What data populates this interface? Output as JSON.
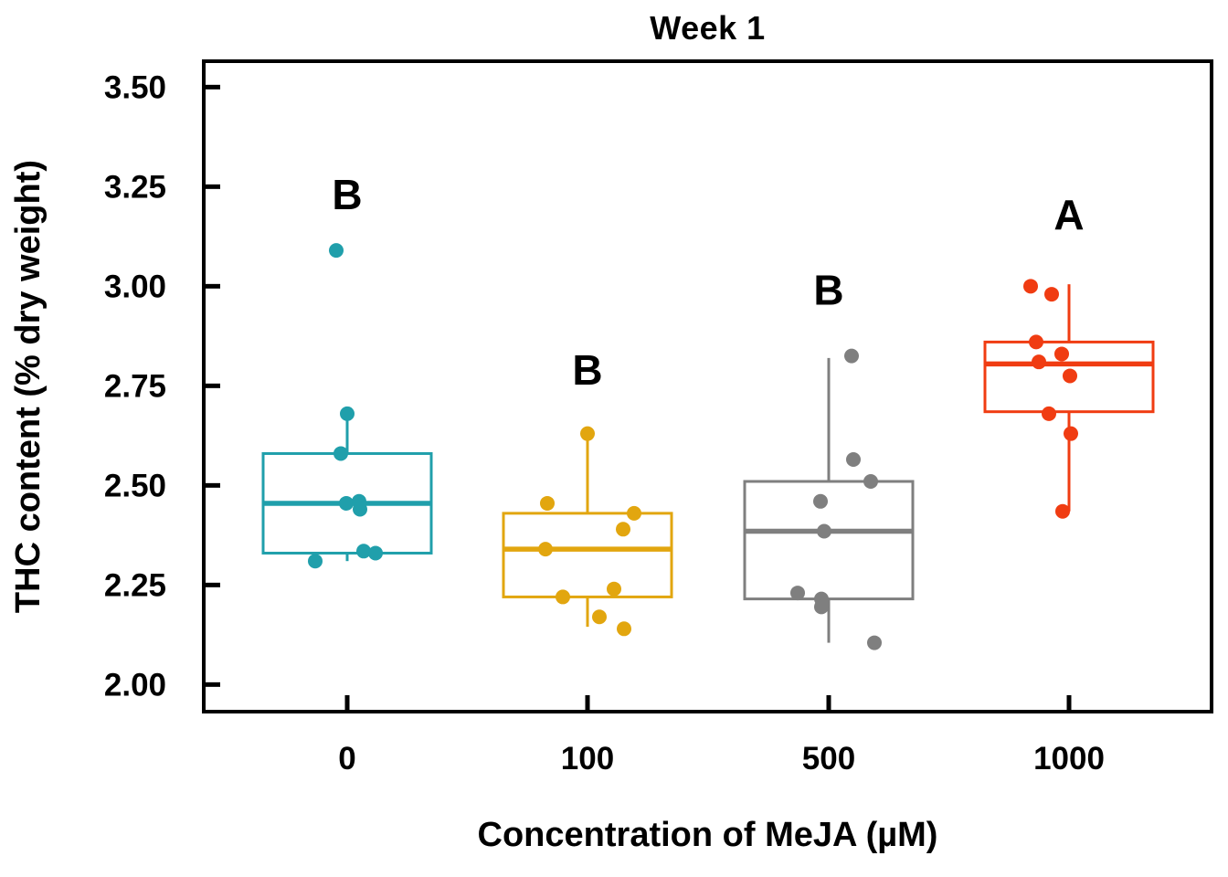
{
  "chart_data": {
    "type": "boxplot",
    "title": "Week 1",
    "xlabel": "Concentration of MeJA (µM)",
    "ylabel": "THC content (% dry weight)",
    "x_categories": [
      "0",
      "100",
      "500",
      "1000"
    ],
    "y_ticks": [
      "2.00",
      "2.25",
      "2.50",
      "2.75",
      "3.00",
      "3.25",
      "3.50"
    ],
    "ylim": [
      1.932,
      3.565
    ],
    "grid": false,
    "legend": "none",
    "groups": [
      {
        "category": "0",
        "color": "#209FAB",
        "sig_letter": "B",
        "sig_letter_y": 3.23,
        "box": {
          "q1": 2.33,
          "median": 2.455,
          "q3": 2.58,
          "whisker_low": 2.31,
          "whisker_high": 2.68
        },
        "points": [
          {
            "v": 3.09,
            "dx": -12
          },
          {
            "v": 2.68,
            "dx": 0
          },
          {
            "v": 2.58,
            "dx": -7
          },
          {
            "v": 2.455,
            "dx": -1
          },
          {
            "v": 2.46,
            "dx": 13
          },
          {
            "v": 2.44,
            "dx": 14
          },
          {
            "v": 2.335,
            "dx": 18
          },
          {
            "v": 2.33,
            "dx": 31
          },
          {
            "v": 2.31,
            "dx": -35
          }
        ]
      },
      {
        "category": "100",
        "color": "#E2A60F",
        "sig_letter": "B",
        "sig_letter_y": 2.79,
        "box": {
          "q1": 2.22,
          "median": 2.34,
          "q3": 2.43,
          "whisker_low": 2.145,
          "whisker_high": 2.63
        },
        "points": [
          {
            "v": 2.63,
            "dx": 0
          },
          {
            "v": 2.455,
            "dx": -44
          },
          {
            "v": 2.43,
            "dx": 51
          },
          {
            "v": 2.39,
            "dx": 39
          },
          {
            "v": 2.34,
            "dx": -46
          },
          {
            "v": 2.24,
            "dx": 29
          },
          {
            "v": 2.22,
            "dx": -27
          },
          {
            "v": 2.17,
            "dx": 13
          },
          {
            "v": 2.14,
            "dx": 40
          }
        ]
      },
      {
        "category": "500",
        "color": "#7F7F7F",
        "sig_letter": "B",
        "sig_letter_y": 2.99,
        "box": {
          "q1": 2.215,
          "median": 2.385,
          "q3": 2.51,
          "whisker_low": 2.105,
          "whisker_high": 2.82
        },
        "points": [
          {
            "v": 2.825,
            "dx": 25
          },
          {
            "v": 2.565,
            "dx": 27
          },
          {
            "v": 2.51,
            "dx": 46
          },
          {
            "v": 2.46,
            "dx": -9
          },
          {
            "v": 2.385,
            "dx": -5
          },
          {
            "v": 2.23,
            "dx": -34
          },
          {
            "v": 2.215,
            "dx": -8
          },
          {
            "v": 2.195,
            "dx": -8
          },
          {
            "v": 2.105,
            "dx": 50
          }
        ]
      },
      {
        "category": "1000",
        "color": "#F03C12",
        "sig_letter": "A",
        "sig_letter_y": 3.18,
        "box": {
          "q1": 2.685,
          "median": 2.805,
          "q3": 2.86,
          "whisker_low": 2.435,
          "whisker_high": 3.005
        },
        "points": [
          {
            "v": 3.0,
            "dx": -42
          },
          {
            "v": 2.98,
            "dx": -19
          },
          {
            "v": 2.86,
            "dx": -36
          },
          {
            "v": 2.83,
            "dx": -8
          },
          {
            "v": 2.81,
            "dx": -33
          },
          {
            "v": 2.775,
            "dx": 1
          },
          {
            "v": 2.68,
            "dx": -22
          },
          {
            "v": 2.63,
            "dx": 2
          },
          {
            "v": 2.435,
            "dx": -7
          }
        ]
      }
    ]
  }
}
